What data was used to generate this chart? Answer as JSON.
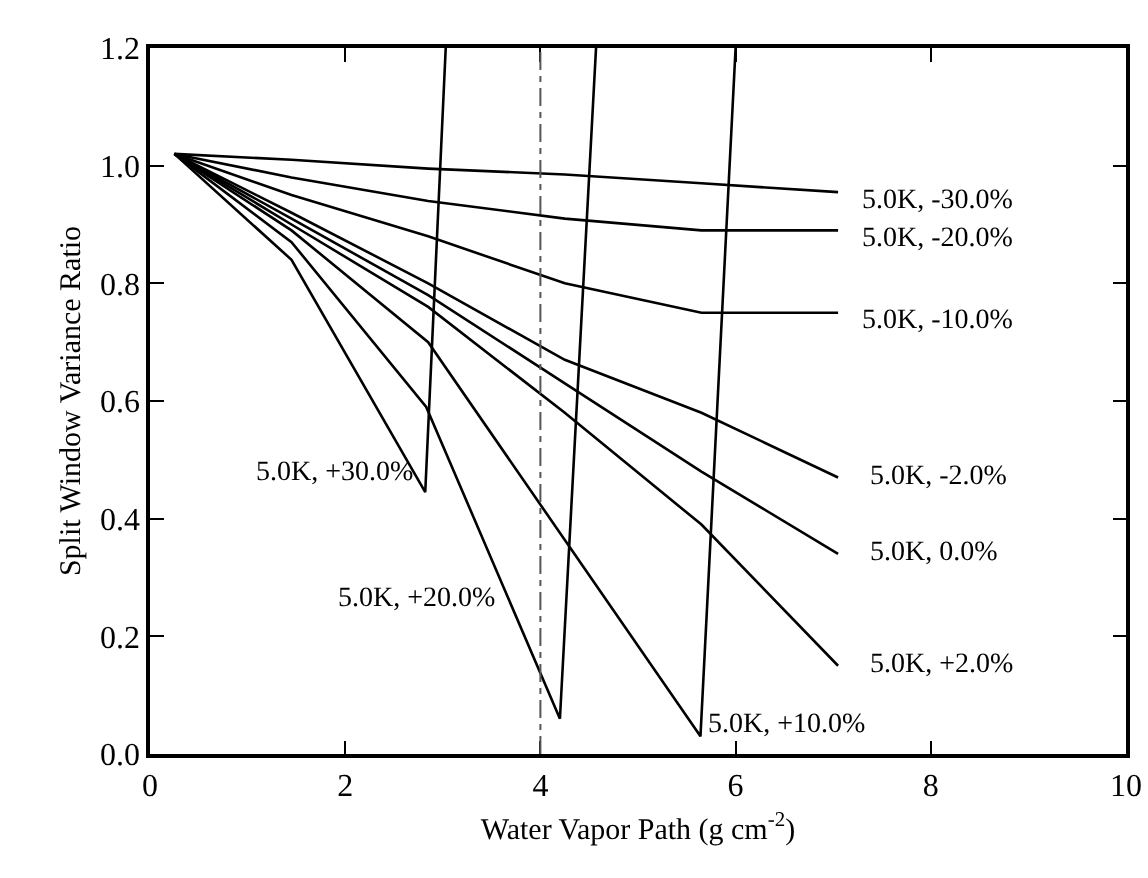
{
  "chart_data": {
    "type": "line",
    "xlabel": "Water Vapor Path (g cm$^{-2}$)",
    "ylabel": "Split Window Variance Ratio",
    "xlim": [
      0,
      10
    ],
    "xticks": [
      0,
      2,
      4,
      6,
      8,
      10
    ],
    "ylim": [
      0,
      1.2
    ],
    "yticks": [
      {
        "value": 0,
        "label": "0.0"
      },
      0.2,
      0.4,
      0.6,
      0.8,
      {
        "value": 1,
        "label": "1.0"
      },
      1.2
    ],
    "grid": false,
    "legend": false,
    "marker": "none",
    "line_style": "solid",
    "ref_lines": [
      {
        "axis": "x",
        "value": 4,
        "line_style": "dashed",
        "color": "#555555"
      }
    ],
    "series": [
      {
        "name": "5.0K, -30.0%",
        "color": "#000000",
        "x": [
          0.25,
          1.45,
          2.85,
          4.25,
          5.65,
          7.05
        ],
        "values": [
          1.02,
          1.01,
          0.995,
          0.985,
          0.97,
          0.955
        ]
      },
      {
        "name": "5.0K, -20.0%",
        "color": "#000000",
        "x": [
          0.25,
          1.45,
          2.85,
          4.25,
          5.65,
          7.05
        ],
        "values": [
          1.02,
          0.98,
          0.94,
          0.91,
          0.89,
          0.89
        ]
      },
      {
        "name": "5.0K, -10.0%",
        "color": "#000000",
        "x": [
          0.25,
          1.45,
          2.85,
          4.25,
          5.65,
          7.05
        ],
        "values": [
          1.02,
          0.95,
          0.88,
          0.8,
          0.75,
          0.75
        ]
      },
      {
        "name": "5.0K, -2.0%",
        "color": "#000000",
        "x": [
          0.25,
          1.45,
          2.85,
          4.25,
          5.65,
          7.05
        ],
        "values": [
          1.02,
          0.92,
          0.8,
          0.67,
          0.58,
          0.47
        ]
      },
      {
        "name": "5.0K, 0.0%",
        "color": "#000000",
        "x": [
          0.25,
          1.45,
          2.85,
          4.25,
          5.65,
          7.05
        ],
        "values": [
          1.02,
          0.91,
          0.78,
          0.63,
          0.48,
          0.34
        ]
      },
      {
        "name": "5.0K, +2.0%",
        "color": "#000000",
        "x": [
          0.25,
          1.45,
          2.85,
          4.25,
          5.65,
          7.05
        ],
        "values": [
          1.02,
          0.9,
          0.76,
          0.58,
          0.39,
          0.15
        ]
      },
      {
        "name": "5.0K, +10.0%",
        "color": "#000000",
        "x": [
          0.25,
          1.45,
          2.85,
          5.64,
          6.0
        ],
        "values": [
          1.02,
          0.89,
          0.7,
          0.03,
          1.2
        ]
      },
      {
        "name": "5.0K, +20.0%",
        "color": "#000000",
        "x": [
          0.25,
          1.45,
          2.83,
          4.2,
          4.57
        ],
        "values": [
          1.02,
          0.87,
          0.59,
          0.06,
          1.2
        ]
      },
      {
        "name": "5.0K, +30.0%",
        "color": "#000000",
        "x": [
          0.25,
          1.45,
          2.82,
          3.03
        ],
        "values": [
          1.02,
          0.84,
          0.445,
          1.2
        ]
      }
    ]
  }
}
